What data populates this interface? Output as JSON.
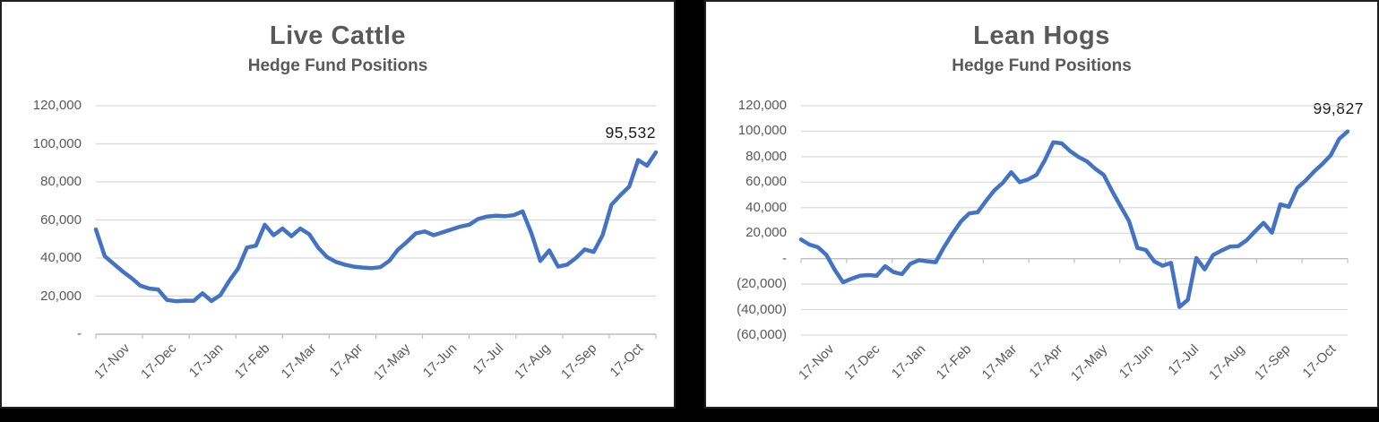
{
  "page": {
    "background_color": "#000000"
  },
  "chart_data": [
    {
      "type": "line",
      "title": "Live Cattle",
      "subtitle": "Hedge Fund Positions",
      "legend": "none",
      "grid": true,
      "line_color": "#4472C4",
      "x_categories": [
        "17-Nov",
        "17-Dec",
        "17-Jan",
        "17-Feb",
        "17-Mar",
        "17-Apr",
        "17-May",
        "17-Jun",
        "17-Jul",
        "17-Aug",
        "17-Sep",
        "17-Oct"
      ],
      "y_tick_labels": [
        "120,000",
        "100,000",
        "80,000",
        "60,000",
        "40,000",
        "20,000",
        "-"
      ],
      "ylim": [
        0,
        120000
      ],
      "y_step": 20000,
      "last_point_label": "95,532",
      "last_point_value": 95532,
      "values": [
        55000,
        41000,
        37000,
        33000,
        29500,
        25500,
        24000,
        23500,
        18000,
        17300,
        17600,
        17500,
        21500,
        17400,
        20500,
        28000,
        34500,
        45500,
        46500,
        57500,
        52000,
        55500,
        51500,
        55500,
        52500,
        45500,
        40500,
        38000,
        36500,
        35500,
        35000,
        34700,
        35200,
        38500,
        44500,
        48500,
        53000,
        54000,
        52000,
        53500,
        55000,
        56500,
        57500,
        60500,
        61800,
        62200,
        62000,
        62500,
        64500,
        53000,
        38500,
        44000,
        35500,
        36500,
        40000,
        44500,
        43200,
        52000,
        68000,
        73000,
        77500,
        91500,
        88500,
        95532
      ]
    },
    {
      "type": "line",
      "title": "Lean Hogs",
      "subtitle": "Hedge Fund Positions",
      "legend": "none",
      "grid": true,
      "line_color": "#4472C4",
      "x_categories": [
        "17-Nov",
        "17-Dec",
        "17-Jan",
        "17-Feb",
        "17-Mar",
        "17-Apr",
        "17-May",
        "17-Jun",
        "17-Jul",
        "17-Aug",
        "17-Sep",
        "17-Oct"
      ],
      "y_tick_labels": [
        "120,000",
        "100,000",
        "80,000",
        "60,000",
        "40,000",
        "20,000",
        "-",
        "(20,000)",
        "(40,000)",
        "(60,000)"
      ],
      "ylim": [
        -60000,
        120000
      ],
      "y_step": 20000,
      "last_point_label": "99,827",
      "last_point_value": 99827,
      "values": [
        15000,
        11000,
        9000,
        3000,
        -8700,
        -18600,
        -15800,
        -13400,
        -12900,
        -13400,
        -5900,
        -10600,
        -12200,
        -4000,
        -1200,
        -2100,
        -2800,
        9000,
        19500,
        29000,
        35500,
        36400,
        45400,
        53600,
        59500,
        67800,
        60000,
        62200,
        65700,
        77400,
        91300,
        90500,
        84400,
        79800,
        76300,
        70400,
        65700,
        52900,
        41200,
        29500,
        8400,
        6800,
        -2100,
        -5600,
        -3300,
        -38000,
        -32300,
        500,
        -8400,
        2800,
        6300,
        9400,
        9800,
        14500,
        21500,
        28100,
        20400,
        42600,
        40700,
        55400,
        61300,
        68300,
        74200,
        81200,
        94000,
        99827
      ]
    }
  ]
}
